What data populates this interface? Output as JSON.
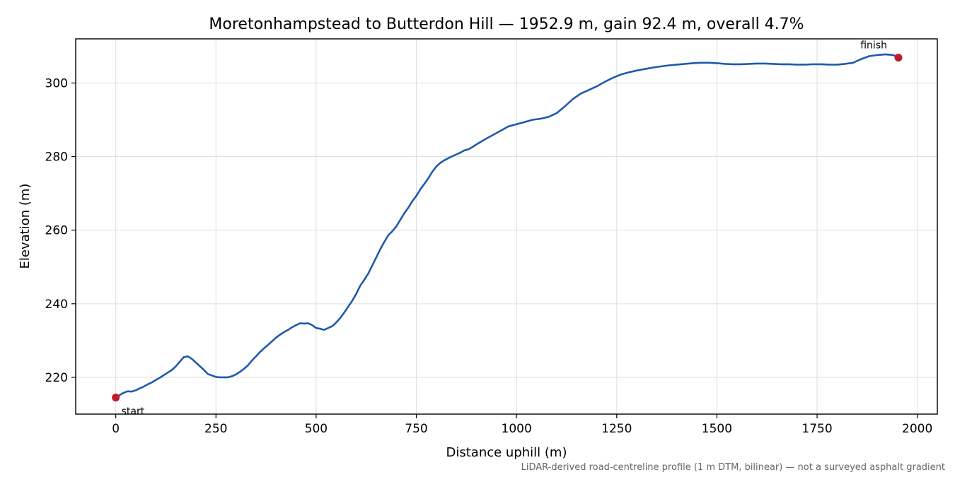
{
  "chart_data": {
    "type": "line",
    "title": "Moretonhampstead to Butterdon Hill — 1952.9 m, gain 92.4 m, overall 4.7%",
    "xlabel": "Distance uphill (m)",
    "ylabel": "Elevation (m)",
    "footnote": "LiDAR-derived road-centreline profile (1 m DTM, bilinear) — not a surveyed asphalt gradient",
    "xlim": [
      -100,
      2050
    ],
    "ylim": [
      210,
      312
    ],
    "x_ticks": [
      0,
      250,
      500,
      750,
      1000,
      1250,
      1500,
      1750,
      2000
    ],
    "y_ticks": [
      220,
      240,
      260,
      280,
      300
    ],
    "grid": true,
    "line_color": "#1f5aad",
    "marker_color": "#c11b2b",
    "series": [
      {
        "x": [
          0,
          10,
          20,
          30,
          40,
          50,
          60,
          70,
          80,
          90,
          100,
          110,
          120,
          130,
          140,
          150,
          160,
          170,
          180,
          190,
          200,
          210,
          220,
          230,
          240,
          250,
          260,
          270,
          280,
          290,
          300,
          310,
          320,
          330,
          340,
          350,
          360,
          370,
          380,
          390,
          400,
          410,
          420,
          430,
          440,
          450,
          460,
          470,
          480,
          490,
          500,
          510,
          520,
          530,
          540,
          550,
          560,
          570,
          580,
          590,
          600,
          610,
          620,
          630,
          640,
          650,
          660,
          670,
          680,
          690,
          700,
          710,
          720,
          730,
          740,
          750,
          760,
          770,
          780,
          790,
          800,
          810,
          820,
          830,
          840,
          850,
          860,
          870,
          880,
          890,
          900,
          920,
          940,
          960,
          980,
          1000,
          1020,
          1040,
          1060,
          1080,
          1100,
          1120,
          1140,
          1160,
          1180,
          1200,
          1220,
          1240,
          1260,
          1280,
          1300,
          1320,
          1340,
          1360,
          1380,
          1400,
          1420,
          1440,
          1460,
          1480,
          1500,
          1520,
          1540,
          1560,
          1580,
          1600,
          1620,
          1640,
          1660,
          1680,
          1700,
          1720,
          1740,
          1760,
          1780,
          1800,
          1820,
          1840,
          1860,
          1880,
          1900,
          1920,
          1940,
          1952.9
        ],
        "y": [
          214.5,
          215.2,
          215.8,
          216.2,
          216.1,
          216.5,
          217.0,
          217.5,
          218.1,
          218.6,
          219.3,
          219.9,
          220.6,
          221.3,
          222.0,
          223.0,
          224.3,
          225.5,
          225.7,
          225.0,
          224.0,
          223.0,
          222.0,
          220.9,
          220.5,
          220.1,
          220.0,
          220.0,
          220.0,
          220.3,
          220.8,
          221.5,
          222.3,
          223.3,
          224.6,
          225.7,
          226.9,
          227.9,
          228.8,
          229.8,
          230.8,
          231.6,
          232.3,
          232.9,
          233.6,
          234.2,
          234.7,
          234.6,
          234.7,
          234.2,
          233.4,
          233.2,
          232.9,
          233.4,
          233.9,
          234.9,
          236.1,
          237.6,
          239.2,
          240.8,
          242.7,
          244.9,
          246.5,
          248.2,
          250.4,
          252.6,
          254.8,
          256.8,
          258.6,
          259.7,
          261.0,
          262.8,
          264.6,
          266.1,
          267.9,
          269.3,
          271.1,
          272.6,
          274.1,
          275.9,
          277.3,
          278.3,
          279.0,
          279.6,
          280.1,
          280.6,
          281.1,
          281.7,
          282.0,
          282.6,
          283.3,
          284.6,
          285.8,
          287.0,
          288.2,
          288.8,
          289.4,
          290.0,
          290.3,
          290.8,
          291.8,
          293.6,
          295.6,
          297.1,
          298.1,
          299.1,
          300.3,
          301.4,
          302.3,
          302.9,
          303.4,
          303.8,
          304.2,
          304.5,
          304.8,
          305.0,
          305.2,
          305.4,
          305.5,
          305.5,
          305.4,
          305.2,
          305.1,
          305.1,
          305.2,
          305.3,
          305.3,
          305.2,
          305.1,
          305.1,
          305.0,
          305.0,
          305.1,
          305.1,
          305.0,
          305.0,
          305.2,
          305.5,
          306.5,
          307.3,
          307.6,
          307.8,
          307.6,
          306.9
        ]
      }
    ],
    "annotations": [
      {
        "text": "start",
        "x": 0,
        "y": 214.5
      },
      {
        "text": "finish",
        "x": 1952.9,
        "y": 306.9
      }
    ]
  }
}
